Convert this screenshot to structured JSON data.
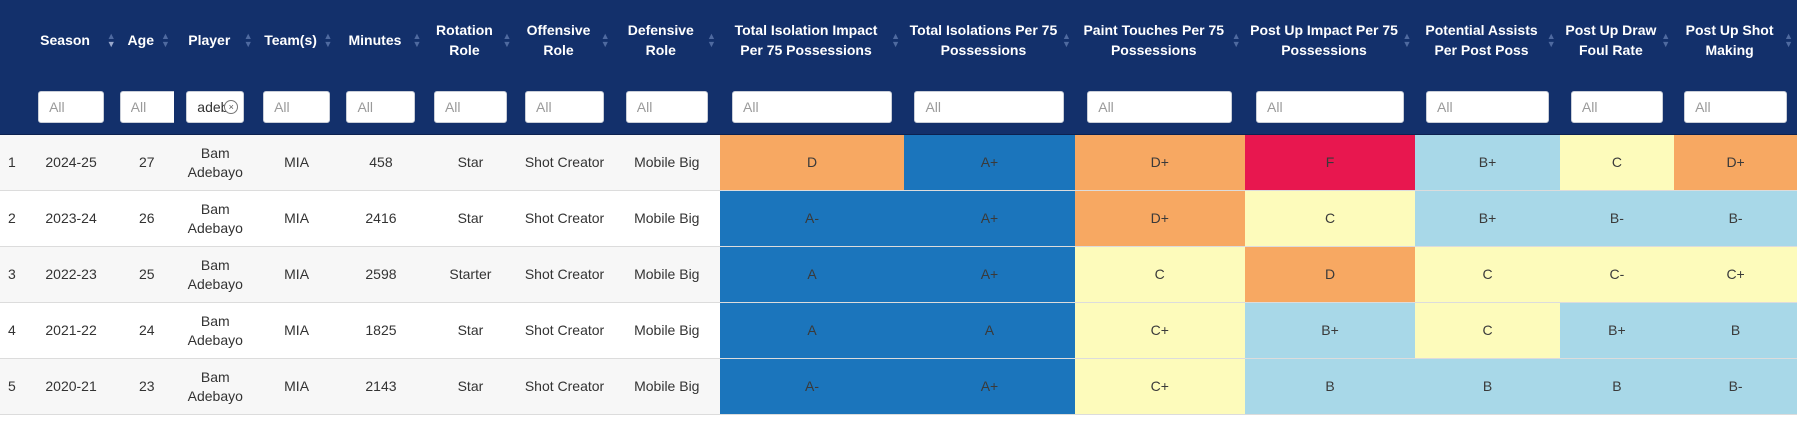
{
  "columns": [
    {
      "key": "rownum",
      "label": "",
      "sortable": false,
      "filter": false
    },
    {
      "key": "season",
      "label": "Season",
      "sortable": true,
      "sorted": "desc"
    },
    {
      "key": "age",
      "label": "Age",
      "sortable": true
    },
    {
      "key": "player",
      "label": "Player",
      "sortable": true
    },
    {
      "key": "teams",
      "label": "Team(s)",
      "sortable": true
    },
    {
      "key": "minutes",
      "label": "Minutes",
      "sortable": true
    },
    {
      "key": "rotation",
      "label": "Rotation Role",
      "sortable": true
    },
    {
      "key": "offensive",
      "label": "Offensive Role",
      "sortable": true
    },
    {
      "key": "defensive",
      "label": "Defensive Role",
      "sortable": true
    },
    {
      "key": "iso_impact",
      "label": "Total Isolation Impact Per 75 Possessions",
      "sortable": true
    },
    {
      "key": "iso_per75",
      "label": "Total Isolations Per 75 Possessions",
      "sortable": true
    },
    {
      "key": "paint_touches",
      "label": "Paint Touches Per 75 Possessions",
      "sortable": true
    },
    {
      "key": "postup_impact",
      "label": "Post Up Impact Per 75 Possessions",
      "sortable": true
    },
    {
      "key": "pot_assists",
      "label": "Potential Assists Per Post Poss",
      "sortable": true
    },
    {
      "key": "postup_foul",
      "label": "Post Up Draw Foul Rate",
      "sortable": true
    },
    {
      "key": "postup_shot",
      "label": "Post Up Shot Making",
      "sortable": true
    }
  ],
  "filters": {
    "placeholder": "All",
    "player_value": "adeb"
  },
  "grade_colors": {
    "A+": "#1b75bc",
    "A": "#1b75bc",
    "A-": "#1b75bc",
    "B+": "#a8d8e8",
    "B": "#a8d8e8",
    "B-": "#a8d8e8",
    "C+": "#fdfbbb",
    "C": "#fdfbbb",
    "C-": "#fdfbbb",
    "D+": "#f7a862",
    "D": "#f7a862",
    "F": "#e8174f"
  },
  "rows": [
    {
      "rownum": "1",
      "season": "2024-25",
      "age": "27",
      "player": "Bam Adebayo",
      "teams": "MIA",
      "minutes": "458",
      "rotation": "Star",
      "offensive": "Shot Creator",
      "defensive": "Mobile Big",
      "grades": [
        "D",
        "A+",
        "D+",
        "F",
        "B+",
        "C",
        "D+"
      ]
    },
    {
      "rownum": "2",
      "season": "2023-24",
      "age": "26",
      "player": "Bam Adebayo",
      "teams": "MIA",
      "minutes": "2416",
      "rotation": "Star",
      "offensive": "Shot Creator",
      "defensive": "Mobile Big",
      "grades": [
        "A-",
        "A+",
        "D+",
        "C",
        "B+",
        "B-",
        "B-"
      ]
    },
    {
      "rownum": "3",
      "season": "2022-23",
      "age": "25",
      "player": "Bam Adebayo",
      "teams": "MIA",
      "minutes": "2598",
      "rotation": "Starter",
      "offensive": "Shot Creator",
      "defensive": "Mobile Big",
      "grades": [
        "A",
        "A+",
        "C",
        "D",
        "C",
        "C-",
        "C+"
      ]
    },
    {
      "rownum": "4",
      "season": "2021-22",
      "age": "24",
      "player": "Bam Adebayo",
      "teams": "MIA",
      "minutes": "1825",
      "rotation": "Star",
      "offensive": "Shot Creator",
      "defensive": "Mobile Big",
      "grades": [
        "A",
        "A",
        "C+",
        "B+",
        "C",
        "B+",
        "B"
      ]
    },
    {
      "rownum": "5",
      "season": "2020-21",
      "age": "23",
      "player": "Bam Adebayo",
      "teams": "MIA",
      "minutes": "2143",
      "rotation": "Star",
      "offensive": "Shot Creator",
      "defensive": "Mobile Big",
      "grades": [
        "A-",
        "A+",
        "C+",
        "B",
        "B",
        "B",
        "B-"
      ]
    }
  ]
}
